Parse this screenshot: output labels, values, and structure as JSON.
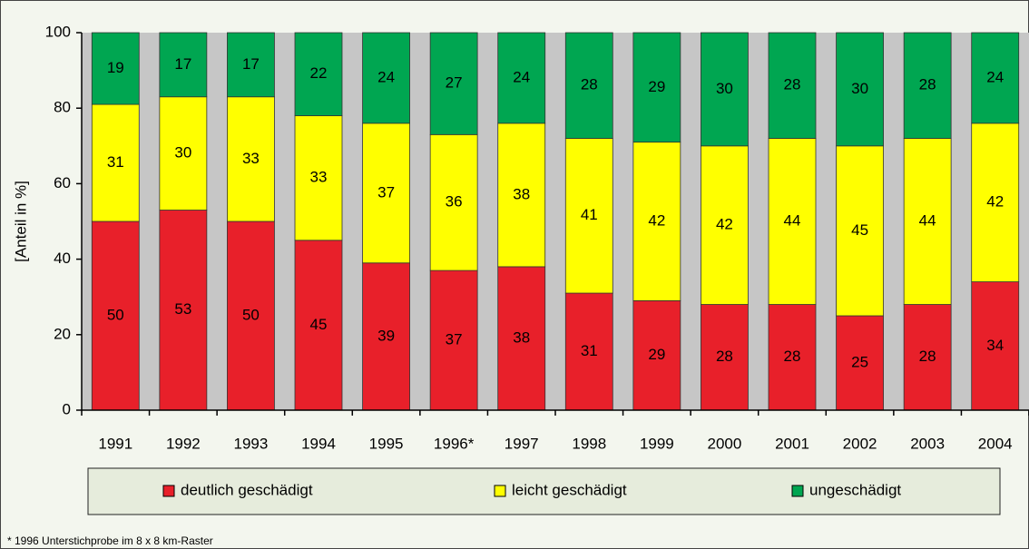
{
  "chart_data": {
    "type": "stacked_bar",
    "y_axis_label": "[Anteil in %]",
    "categories": [
      "1991",
      "1992",
      "1993",
      "1994",
      "1995",
      "1996*",
      "1997",
      "1998",
      "1999",
      "2000",
      "2001",
      "2002",
      "2003",
      "2004"
    ],
    "series": [
      {
        "name": "deutlich geschädigt",
        "color": "#e8202a",
        "values": [
          50,
          53,
          50,
          45,
          39,
          37,
          38,
          31,
          29,
          28,
          28,
          25,
          28,
          34
        ]
      },
      {
        "name": "leicht geschädigt",
        "color": "#ffff00",
        "values": [
          31,
          30,
          33,
          33,
          37,
          36,
          38,
          41,
          42,
          42,
          44,
          45,
          44,
          42
        ]
      },
      {
        "name": "ungeschädigt",
        "color": "#00a651",
        "values": [
          19,
          17,
          17,
          22,
          24,
          27,
          24,
          28,
          29,
          30,
          28,
          30,
          28,
          24
        ]
      }
    ],
    "ylim": [
      0,
      100
    ],
    "yticks": [
      0,
      20,
      40,
      60,
      80,
      100
    ],
    "footnote": "* 1996 Unterstichprobe im 8 x 8 km-Raster"
  }
}
